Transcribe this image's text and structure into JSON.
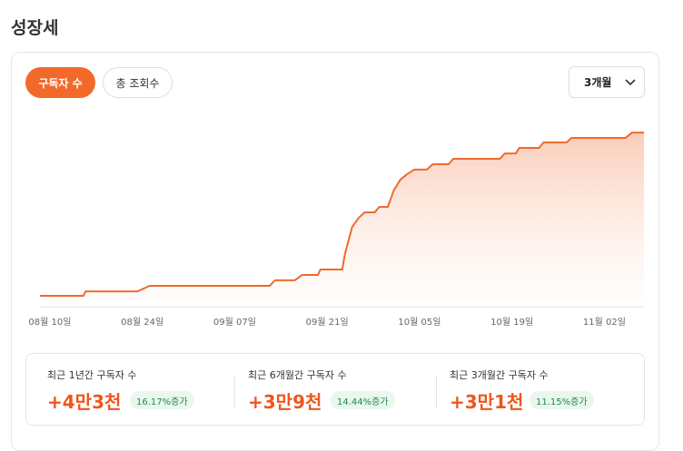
{
  "header": {
    "title": "성장세"
  },
  "tabs": [
    "구독자 수",
    "총 조회수"
  ],
  "dropdown": "3개월",
  "chart_data": {
    "type": "line",
    "x": [
      -1.5,
      5.1,
      5.4,
      13.3,
      15.1,
      33.3,
      34.1,
      37.1,
      38.2,
      40.6,
      41.0,
      44.3,
      44.7,
      45.8,
      46.8,
      47.7,
      49.2,
      49.9,
      51.2,
      52.1,
      53.1,
      54.1,
      55.2,
      57.1,
      58.0,
      60.4,
      61.1,
      68.2,
      68.9,
      70.6,
      71.1,
      74.1,
      74.8,
      78.3,
      79.0,
      87.2,
      88.2,
      90.0
    ],
    "series": [
      {
        "name": "구독자 수",
        "color": "#ef6a2b",
        "values": [
          2.1,
          2.1,
          4.7,
          4.7,
          7.9,
          7.9,
          11.1,
          11.1,
          14.2,
          14.2,
          17.4,
          17.4,
          26.3,
          42.1,
          47.4,
          50.5,
          50.5,
          53.7,
          53.7,
          63.2,
          69.5,
          72.6,
          75.3,
          75.3,
          78.4,
          78.4,
          81.6,
          81.6,
          84.7,
          84.7,
          87.9,
          87.9,
          91.1,
          91.1,
          93.7,
          93.7,
          96.8,
          96.8
        ]
      }
    ],
    "xlim": [
      -1.5,
      90.0
    ],
    "xticks": [
      {
        "value": 0,
        "label": "08월 10일"
      },
      {
        "value": 14,
        "label": "08월 24일"
      },
      {
        "value": 28,
        "label": "09월 07일"
      },
      {
        "value": 42,
        "label": "09월 21일"
      },
      {
        "value": 56,
        "label": "10월 05일"
      },
      {
        "value": 70,
        "label": "10월 19일"
      },
      {
        "value": 84,
        "label": "11월 02일"
      }
    ],
    "ylim": [
      0,
      100
    ]
  },
  "stats": [
    {
      "label": "최근 1년간 구독자 수",
      "value": "+4만3천",
      "badge": "16.17%증가"
    },
    {
      "label": "최근 6개월간 구독자 수",
      "value": "+3만9천",
      "badge": "14.44%증가"
    },
    {
      "label": "최근 3개월간 구독자 수",
      "value": "+3만1천",
      "badge": "11.15%증가"
    }
  ]
}
